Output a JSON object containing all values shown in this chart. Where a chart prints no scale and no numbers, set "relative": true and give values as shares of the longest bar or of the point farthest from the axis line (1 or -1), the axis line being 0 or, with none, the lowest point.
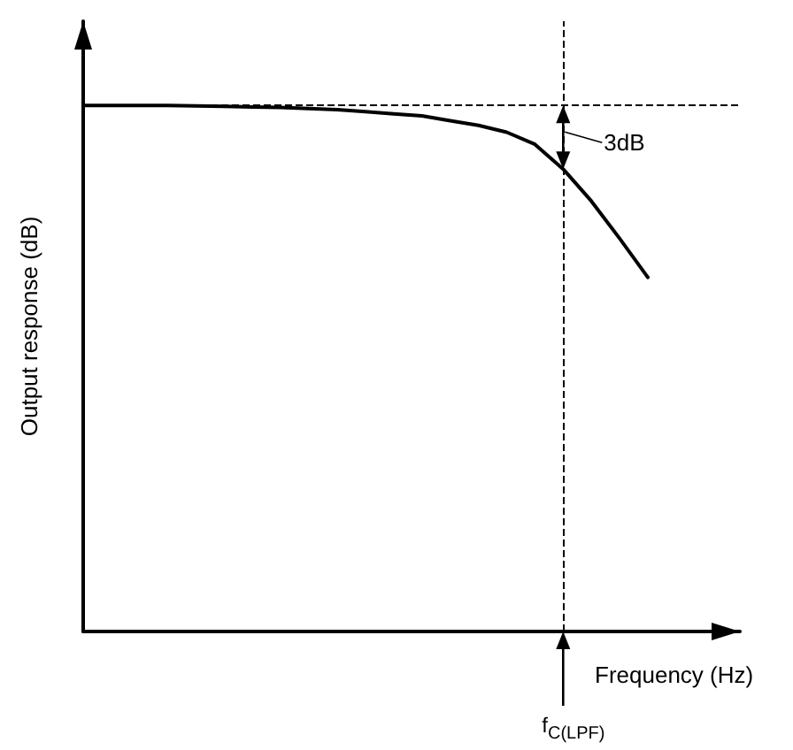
{
  "chart_data": {
    "type": "line",
    "relative": true,
    "xlabel": "Frequency (Hz)",
    "ylabel": "Output response (dB)",
    "categories": [
      null,
      null,
      null,
      null,
      null,
      null,
      null,
      null,
      null,
      null,
      null,
      null,
      null,
      null,
      null,
      null,
      null,
      null,
      null,
      null,
      null
    ],
    "series": [
      {
        "color": "#000000",
        "values": [
          1,
          1,
          1,
          1,
          0.999,
          0.998,
          0.997,
          0.996,
          0.994,
          0.992,
          0.988,
          0.984,
          0.98,
          0.971,
          0.962,
          0.949,
          0.926,
          0.879,
          0.818,
          0.747,
          0.673
        ]
      }
    ],
    "ref_lines": [
      {
        "axis": "y",
        "value": 1,
        "label": null,
        "color": "#000000",
        "line_style": "dashed"
      }
    ],
    "annotations": [
      "3dB",
      "f$_{C(LPF)}$"
    ],
    "marker": "none",
    "line_style": "solid",
    "grid": false
  }
}
